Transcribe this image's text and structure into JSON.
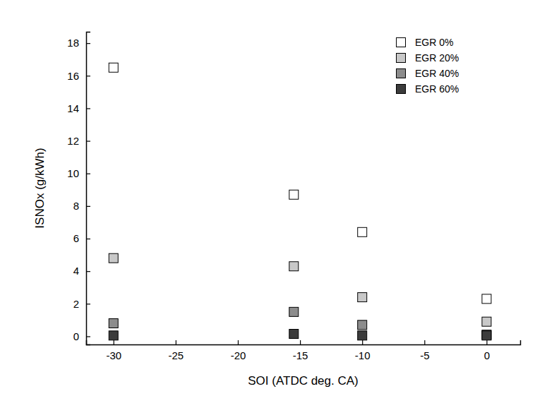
{
  "chart_data": {
    "type": "scatter",
    "x_label": "SOI (ATDC deg. CA)",
    "y_label": "ISNOx (g/kWh)",
    "x": [
      -30,
      -15.5,
      -10,
      0
    ],
    "series": [
      {
        "name": "EGR 0%",
        "color": "#ffffff",
        "values": [
          16.5,
          8.7,
          6.4,
          2.3
        ]
      },
      {
        "name": "EGR 20%",
        "color": "#c8c8c8",
        "values": [
          4.8,
          4.3,
          2.4,
          0.9
        ]
      },
      {
        "name": "EGR 40%",
        "color": "#8c8c8c",
        "values": [
          0.8,
          1.5,
          0.7,
          0.1
        ]
      },
      {
        "name": "EGR 60%",
        "color": "#3c3c3c",
        "values": [
          0.05,
          0.15,
          0.05,
          0.05
        ]
      }
    ],
    "marker": "square",
    "xlim": [
      -32.2,
      2.7
    ],
    "xticks": [
      -30,
      -25,
      -20,
      -15,
      -10,
      -5,
      0
    ],
    "ylim": [
      -0.5,
      18.7
    ],
    "yticks": [
      0,
      2,
      4,
      6,
      8,
      10,
      12,
      14,
      16,
      18
    ],
    "grid": false,
    "legend": "upper right"
  }
}
